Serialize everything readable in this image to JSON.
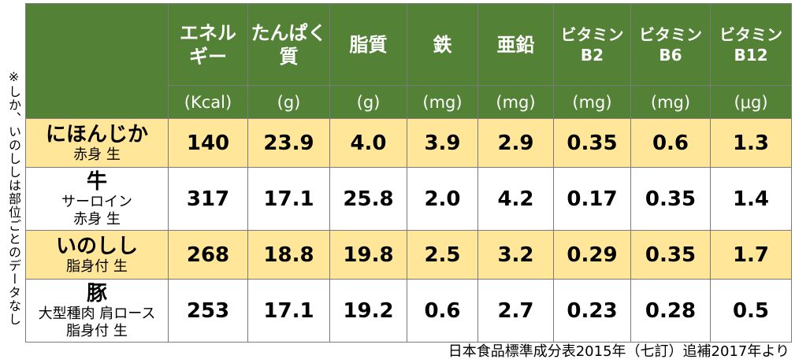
{
  "side_note": "※しか、いのししは部位ごとのデータなし",
  "chart_data": {
    "type": "table",
    "columns": [
      {
        "label": "エネルギー",
        "unit": "(Kcal)"
      },
      {
        "label": "たんぱく質",
        "unit": "(g)"
      },
      {
        "label": "脂質",
        "unit": "(g)"
      },
      {
        "label": "鉄",
        "unit": "(mg)"
      },
      {
        "label": "亜鉛",
        "unit": "(mg)"
      },
      {
        "label": "ビタミンB2",
        "unit": "(mg)"
      },
      {
        "label": "ビタミンB6",
        "unit": "(mg)"
      },
      {
        "label": "ビタミンB12",
        "unit": "(μg)"
      }
    ],
    "header_lines": [
      [
        "エネル",
        "ギー"
      ],
      [
        "たんぱく",
        "質"
      ],
      [
        "脂質",
        ""
      ],
      [
        "鉄",
        ""
      ],
      [
        "亜鉛",
        ""
      ],
      [
        "ビタミン",
        "B2"
      ],
      [
        "ビタミン",
        "B6"
      ],
      [
        "ビタミン",
        "B12"
      ]
    ],
    "rows": [
      {
        "name": "にほんじか",
        "sub": [
          "赤身 生"
        ],
        "values": [
          "140",
          "23.9",
          "4.0",
          "3.9",
          "2.9",
          "0.35",
          "0.6",
          "1.3"
        ]
      },
      {
        "name": "牛",
        "sub": [
          "サーロイン",
          "赤身 生"
        ],
        "values": [
          "317",
          "17.1",
          "25.8",
          "2.0",
          "4.2",
          "0.17",
          "0.35",
          "1.4"
        ]
      },
      {
        "name": "いのしし",
        "sub": [
          "脂身付 生"
        ],
        "values": [
          "268",
          "18.8",
          "19.8",
          "2.5",
          "3.2",
          "0.29",
          "0.35",
          "1.7"
        ]
      },
      {
        "name": "豚",
        "sub": [
          "大型種肉 肩ロース",
          "脂身付 生"
        ],
        "values": [
          "253",
          "17.1",
          "19.2",
          "0.6",
          "2.7",
          "0.23",
          "0.28",
          "0.5"
        ]
      }
    ]
  },
  "source": "日本食品標準成分表2015年（七訂）追補2017年より",
  "colors": {
    "header_green": "#538135",
    "row_highlight": "#ffe699",
    "row_plain": "#ffffff"
  }
}
